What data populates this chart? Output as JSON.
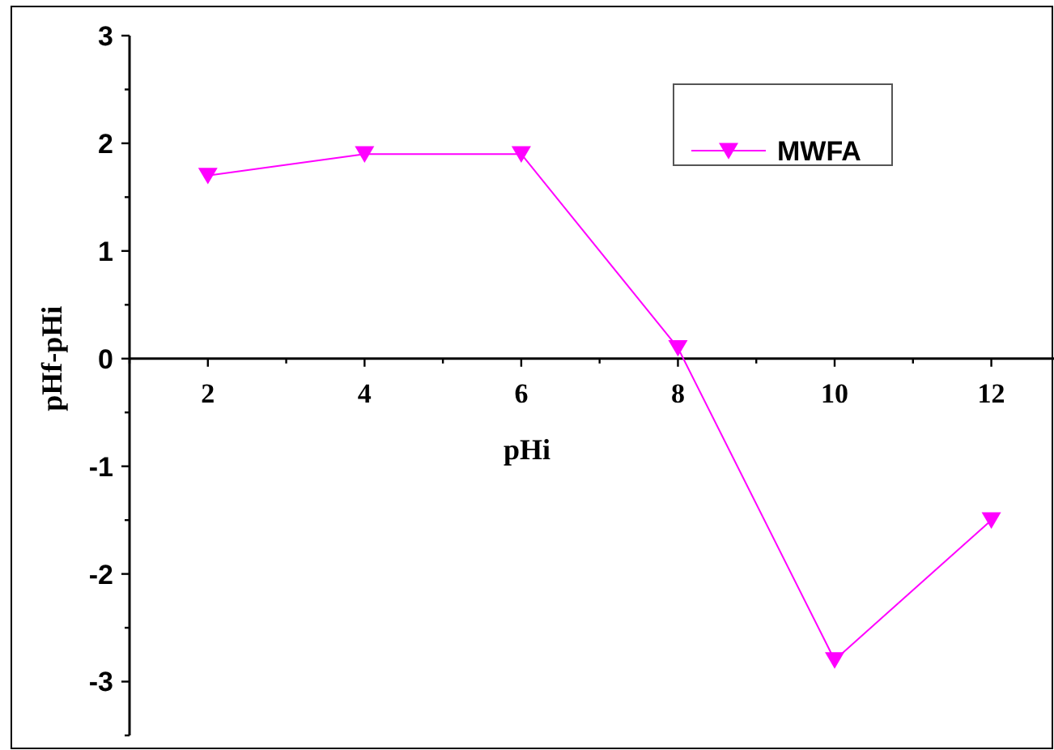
{
  "chart_data": {
    "type": "line",
    "xlabel": "pHi",
    "ylabel": "pHf-pHi",
    "x": [
      2,
      4,
      6,
      8,
      10,
      12
    ],
    "series": [
      {
        "name": "MWFA",
        "color": "#ff00ff",
        "values": [
          1.7,
          1.9,
          1.9,
          0.1,
          -2.8,
          -1.5
        ]
      }
    ],
    "xlim": [
      1,
      12.8
    ],
    "xticks": [
      {
        "value": 1,
        "label": null
      },
      2,
      {
        "value": 3,
        "label": null
      },
      4,
      {
        "value": 5,
        "label": null
      },
      6,
      {
        "value": 7,
        "label": null
      },
      8,
      {
        "value": 9,
        "label": null
      },
      10,
      {
        "value": 11,
        "label": null
      },
      12
    ],
    "ylim": [
      -3.5,
      3
    ],
    "yticks": [
      {
        "value": -3.5,
        "label": null
      },
      -3,
      {
        "value": -2.5,
        "label": null
      },
      -2,
      {
        "value": -1.5,
        "label": null
      },
      -1,
      {
        "value": -0.5,
        "label": null
      },
      0,
      {
        "value": 0.5,
        "label": null
      },
      1,
      {
        "value": 1.5,
        "label": null
      },
      2,
      {
        "value": 2.5,
        "label": null
      },
      3
    ],
    "marker": "triangle",
    "legend": "top right",
    "grid": false
  }
}
